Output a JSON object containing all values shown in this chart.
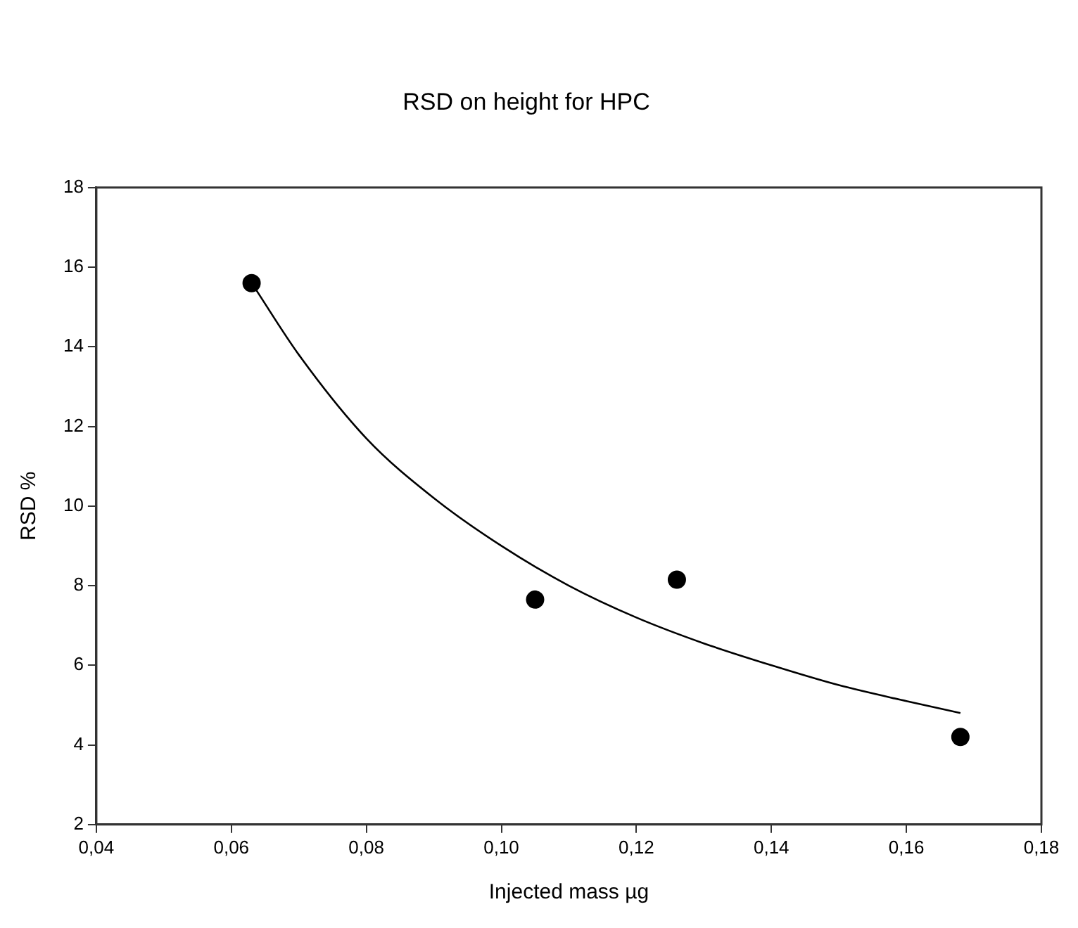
{
  "chart_data": {
    "type": "scatter",
    "title": "RSD on height for HPC",
    "xlabel": "Injected mass µg",
    "ylabel": "RSD %",
    "xlim": [
      0.04,
      0.18
    ],
    "xticks": [
      {
        "value": 0.04,
        "label": "0,04"
      },
      {
        "value": 0.06,
        "label": "0,06"
      },
      {
        "value": 0.08,
        "label": "0,08"
      },
      {
        "value": 0.1,
        "label": "0,10"
      },
      {
        "value": 0.12,
        "label": "0,12"
      },
      {
        "value": 0.14,
        "label": "0,14"
      },
      {
        "value": 0.16,
        "label": "0,16"
      },
      {
        "value": 0.18,
        "label": "0,18"
      }
    ],
    "ylim": [
      2,
      18
    ],
    "yticks": [
      2,
      4,
      6,
      8,
      10,
      12,
      14,
      16,
      18
    ],
    "grid": false,
    "legend": false,
    "series": [
      {
        "color": "#000000",
        "marker": "circle",
        "x": [
          0.063,
          0.105,
          0.126,
          0.168
        ],
        "values": [
          15.6,
          7.65,
          8.15,
          4.2
        ]
      },
      {
        "type": "line",
        "color": "#000000",
        "marker": "none",
        "line_style": "solid",
        "x": [
          0.0634,
          0.07,
          0.08,
          0.09,
          0.1,
          0.11,
          0.12,
          0.13,
          0.14,
          0.15,
          0.16,
          0.168
        ],
        "values": [
          15.5,
          13.8,
          11.7,
          10.2,
          9.0,
          8.0,
          7.2,
          6.55,
          6.0,
          5.5,
          5.1,
          4.8
        ]
      }
    ]
  }
}
